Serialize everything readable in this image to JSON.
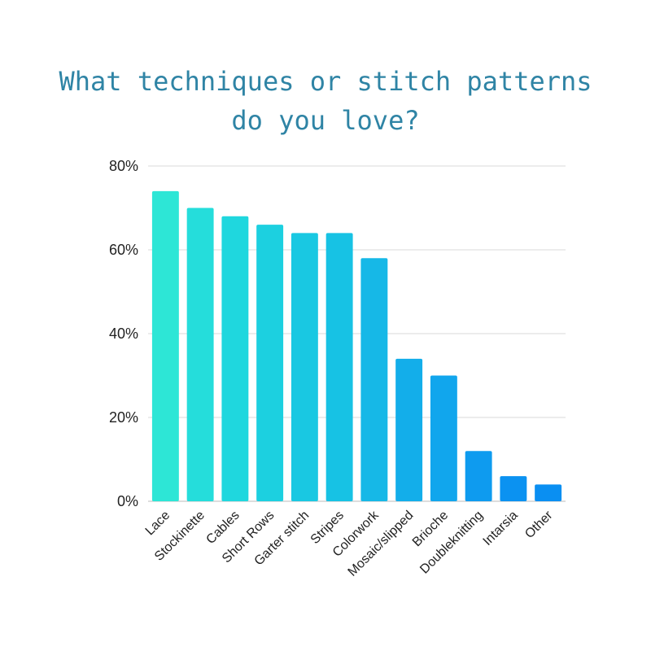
{
  "title": {
    "line1": "What techniques or stitch patterns",
    "line2": "do you love?"
  },
  "chart_data": {
    "type": "bar",
    "title": "What techniques or stitch patterns do you love?",
    "xlabel": "",
    "ylabel": "",
    "ylim": [
      0,
      80
    ],
    "yticks": [
      "0%",
      "20%",
      "40%",
      "60%",
      "80%"
    ],
    "grid": true,
    "categories": [
      "Lace",
      "Stockinette",
      "Cables",
      "Short Rows",
      "Garter stitch",
      "Stripes",
      "Colorwork",
      "Mosaic/slipped",
      "Brioche",
      "Doubleknitting",
      "Intarsia",
      "Other"
    ],
    "values": [
      74,
      70,
      68,
      66,
      64,
      64,
      58,
      34,
      30,
      12,
      6,
      4
    ],
    "colors": [
      "#2de6d6",
      "#25dddb",
      "#1fd7de",
      "#1cd0e0",
      "#19c8e2",
      "#17c2e4",
      "#16b8e7",
      "#13aeea",
      "#11a6ed",
      "#0e9bef",
      "#0b92f1",
      "#0a8ff2"
    ]
  }
}
